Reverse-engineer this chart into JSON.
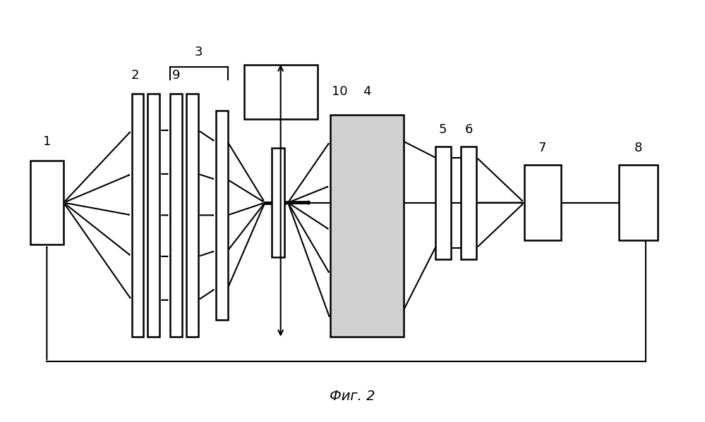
{
  "bg_color": "#ffffff",
  "line_color": "#000000",
  "fig_title": "Фиг. 2"
}
